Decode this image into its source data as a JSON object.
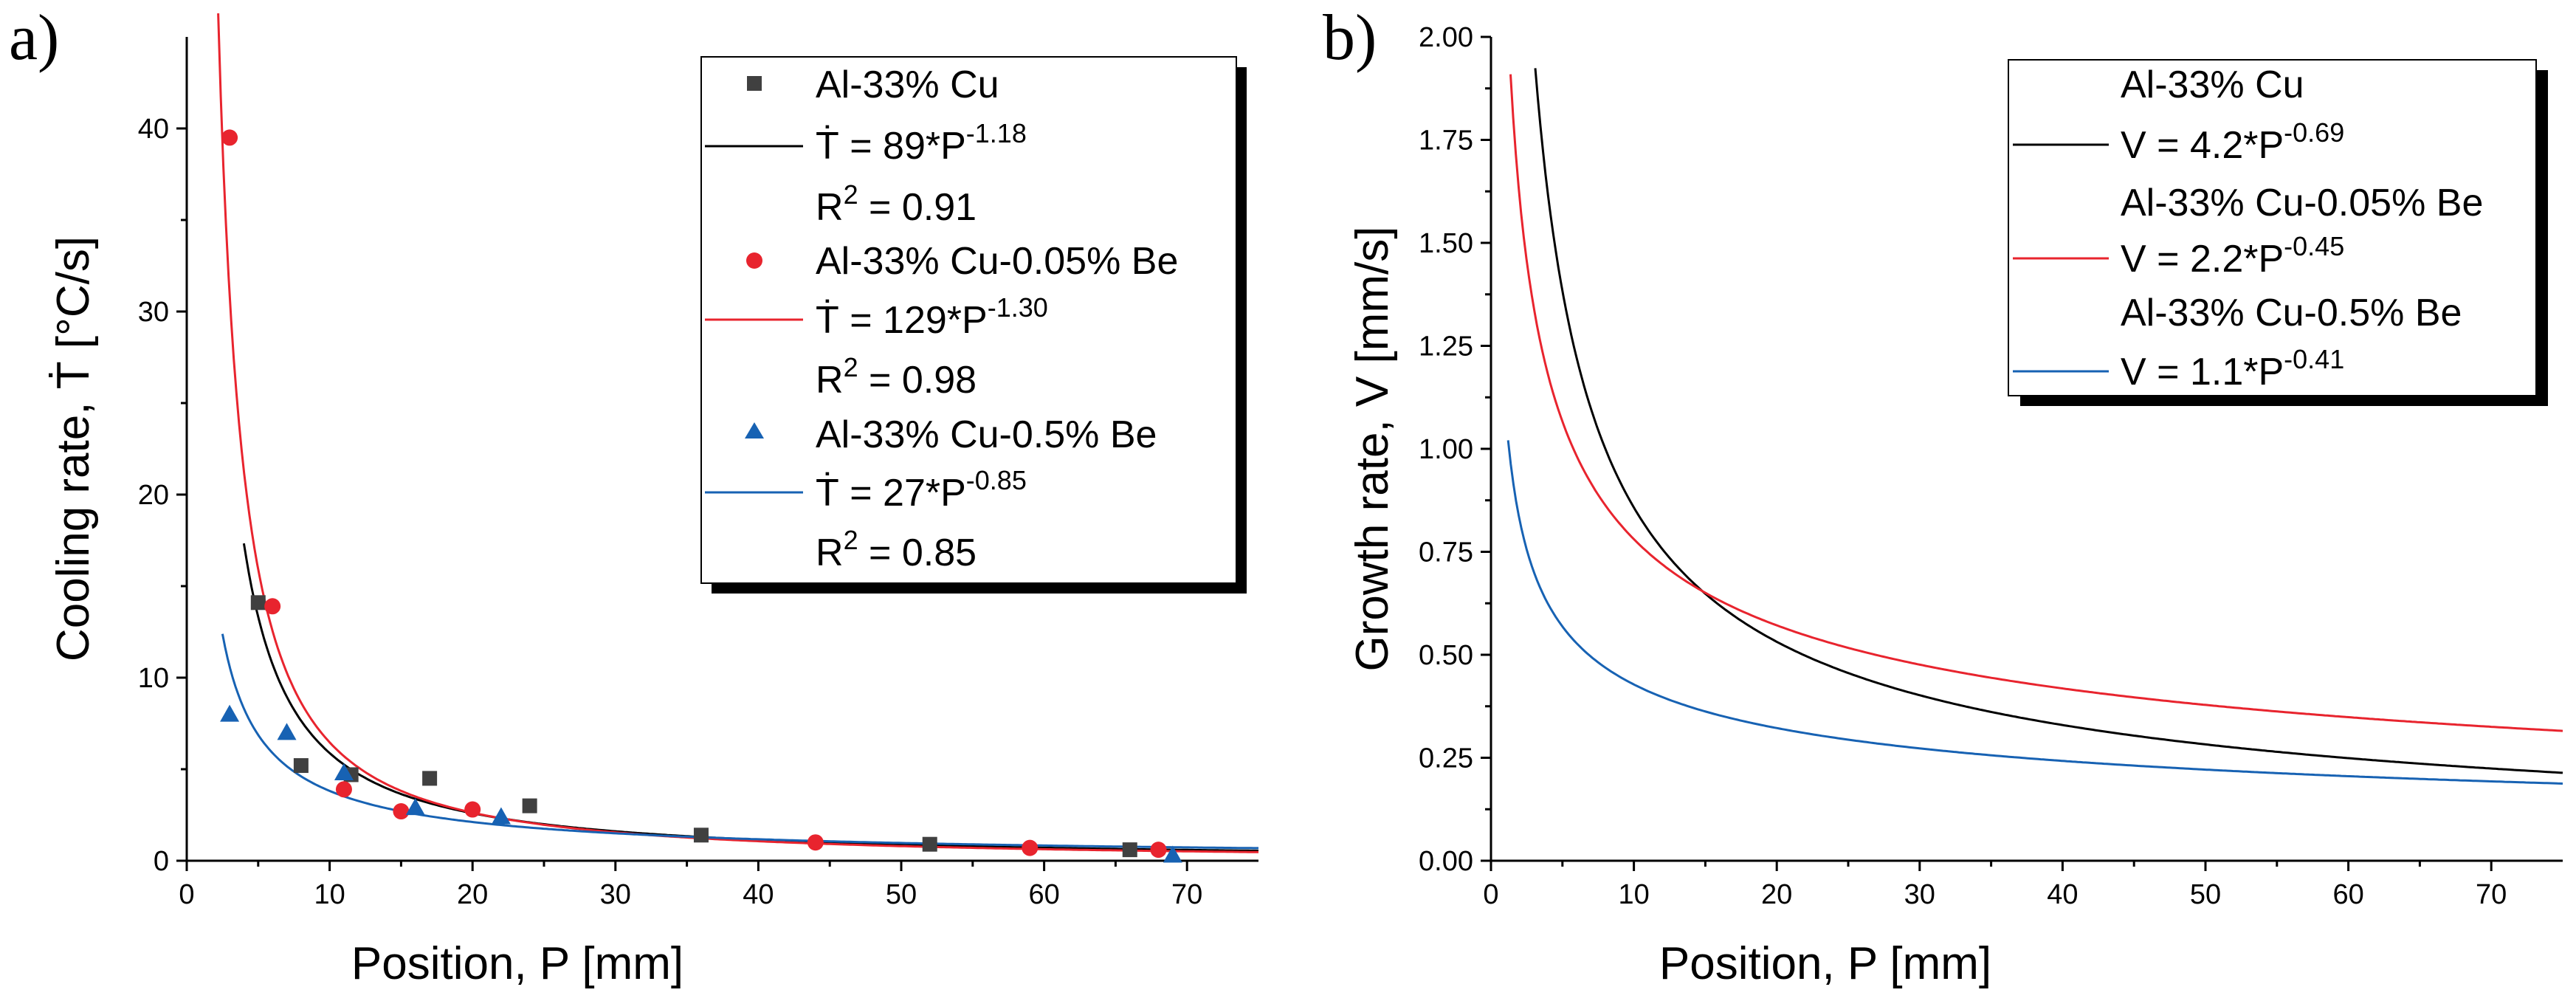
{
  "chart_data": [
    {
      "type": "scatter",
      "panel_label": "a)",
      "xlabel": "Position, P [mm]",
      "ylabel_text": "Cooling rate, ",
      "ylabel_symbol": "Ṫ",
      "ylabel_unit": " [°C/s]",
      "xlim": [
        0,
        75
      ],
      "ylim": [
        0,
        45
      ],
      "xticks": [
        0,
        10,
        20,
        30,
        40,
        50,
        60,
        70
      ],
      "yticks": [
        0,
        10,
        20,
        30,
        40
      ],
      "legend_position": "top-right",
      "series": [
        {
          "name": "Al-33% Cu",
          "marker": "square",
          "color": "#404040",
          "x": [
            5,
            8,
            11.5,
            17,
            24,
            36,
            52,
            66
          ],
          "y": [
            14.1,
            5.2,
            4.7,
            4.5,
            3.0,
            1.4,
            0.9,
            0.6
          ]
        },
        {
          "name": "Al-33% Cu-0.05% Be",
          "marker": "circle",
          "color": "#e8242e",
          "x": [
            3,
            6,
            11,
            15,
            20,
            44,
            59,
            68
          ],
          "y": [
            39.5,
            13.9,
            3.9,
            2.7,
            2.8,
            1.0,
            0.7,
            0.6
          ]
        },
        {
          "name": "Al-33% Cu-0.5% Be",
          "marker": "triangle",
          "color": "#1762b3",
          "x": [
            3,
            7,
            11,
            16,
            22,
            69
          ],
          "y": [
            8.0,
            7.0,
            4.8,
            2.9,
            2.4,
            0.3
          ]
        }
      ],
      "fits": [
        {
          "color": "#000000",
          "coef": 89,
          "exp": -1.18,
          "x_start": 4,
          "x_end": 75,
          "label_lhs": "Ṫ = 89*P",
          "label_exp": "-1.18",
          "r2_lhs": "R",
          "r2_sup": "2",
          "r2_rhs": " = 0.91"
        },
        {
          "color": "#e8242e",
          "coef": 129,
          "exp": -1.3,
          "x_start": 2.2,
          "x_end": 75,
          "label_lhs": "Ṫ = 129*P",
          "label_exp": "-1.30",
          "r2_lhs": "R",
          "r2_sup": "2",
          "r2_rhs": " = 0.98"
        },
        {
          "color": "#1762b3",
          "coef": 27,
          "exp": -0.85,
          "x_start": 2.5,
          "x_end": 75,
          "label_lhs": "Ṫ = 27*P",
          "label_exp": "-0.85",
          "r2_lhs": "R",
          "r2_sup": "2",
          "r2_rhs": " = 0.85"
        }
      ]
    },
    {
      "type": "line",
      "panel_label": "b)",
      "xlabel": "Position, P [mm]",
      "ylabel": "Growth rate, V [mm/s]",
      "xlim": [
        0,
        75
      ],
      "ylim": [
        0,
        2.0
      ],
      "xticks": [
        0,
        10,
        20,
        30,
        40,
        50,
        60,
        70
      ],
      "yticks": [
        "0.00",
        "0.25",
        "0.50",
        "0.75",
        "1.00",
        "1.25",
        "1.50",
        "1.75",
        "2.00"
      ],
      "legend_position": "top-right",
      "series": [
        {
          "name": "Al-33% Cu",
          "color": "#000000",
          "coef": 4.2,
          "exp": -0.69,
          "x_start": 3.1,
          "x_end": 75,
          "label_lhs": "V = 4.2*P",
          "label_exp": "-0.69"
        },
        {
          "name": "Al-33% Cu-0.05% Be",
          "color": "#e8242e",
          "coef": 2.2,
          "exp": -0.45,
          "x_start": 1.0,
          "x_end": 75,
          "label_lhs": "V = 2.2*P",
          "label_exp": "-0.45"
        },
        {
          "name": "Al-33% Cu-0.5% Be",
          "color": "#1762b3",
          "coef": 1.1,
          "exp": -0.41,
          "x_start": 1.2,
          "x_end": 75,
          "label_lhs": "V = 1.1*P",
          "label_exp": "-0.41"
        }
      ]
    }
  ]
}
